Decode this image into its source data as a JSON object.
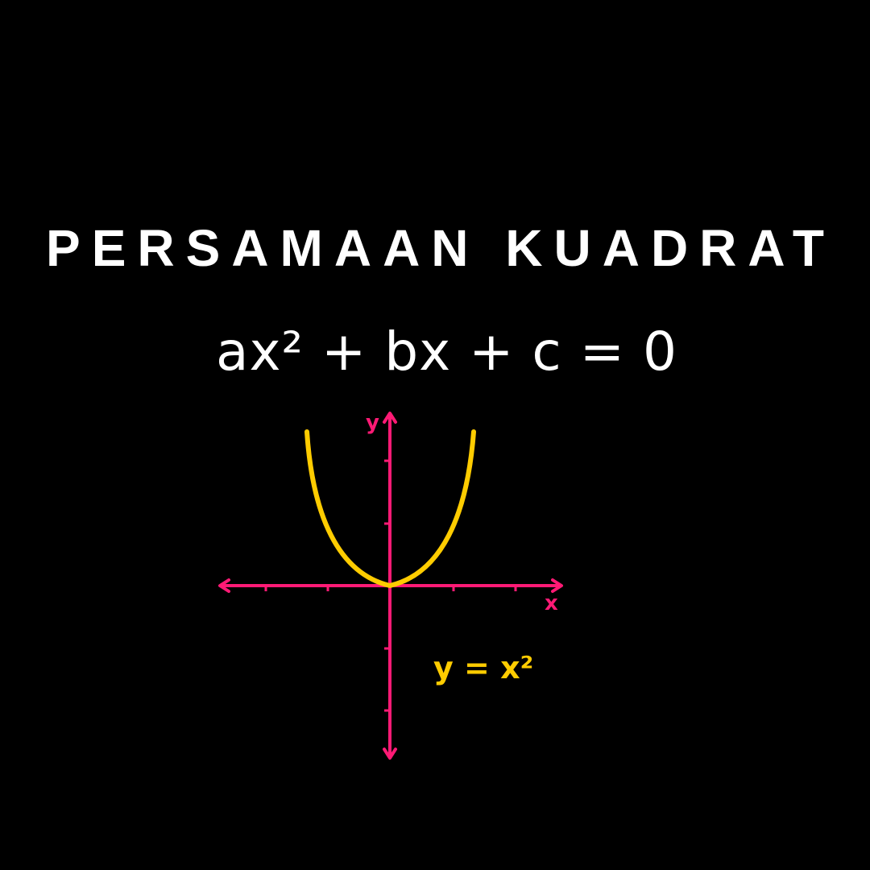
{
  "title": "PERSAMAAN KUADRAT",
  "formula": "ax² + bx + c = 0",
  "graph": {
    "x_axis_label": "x",
    "y_axis_label": "y",
    "curve_label": "y = x²"
  },
  "colors": {
    "background": "#000000",
    "text": "#ffffff",
    "axes": "#ff1a75",
    "curve": "#ffcc00"
  },
  "icons": {
    "axis_arrowheads": "arrow-icon"
  }
}
